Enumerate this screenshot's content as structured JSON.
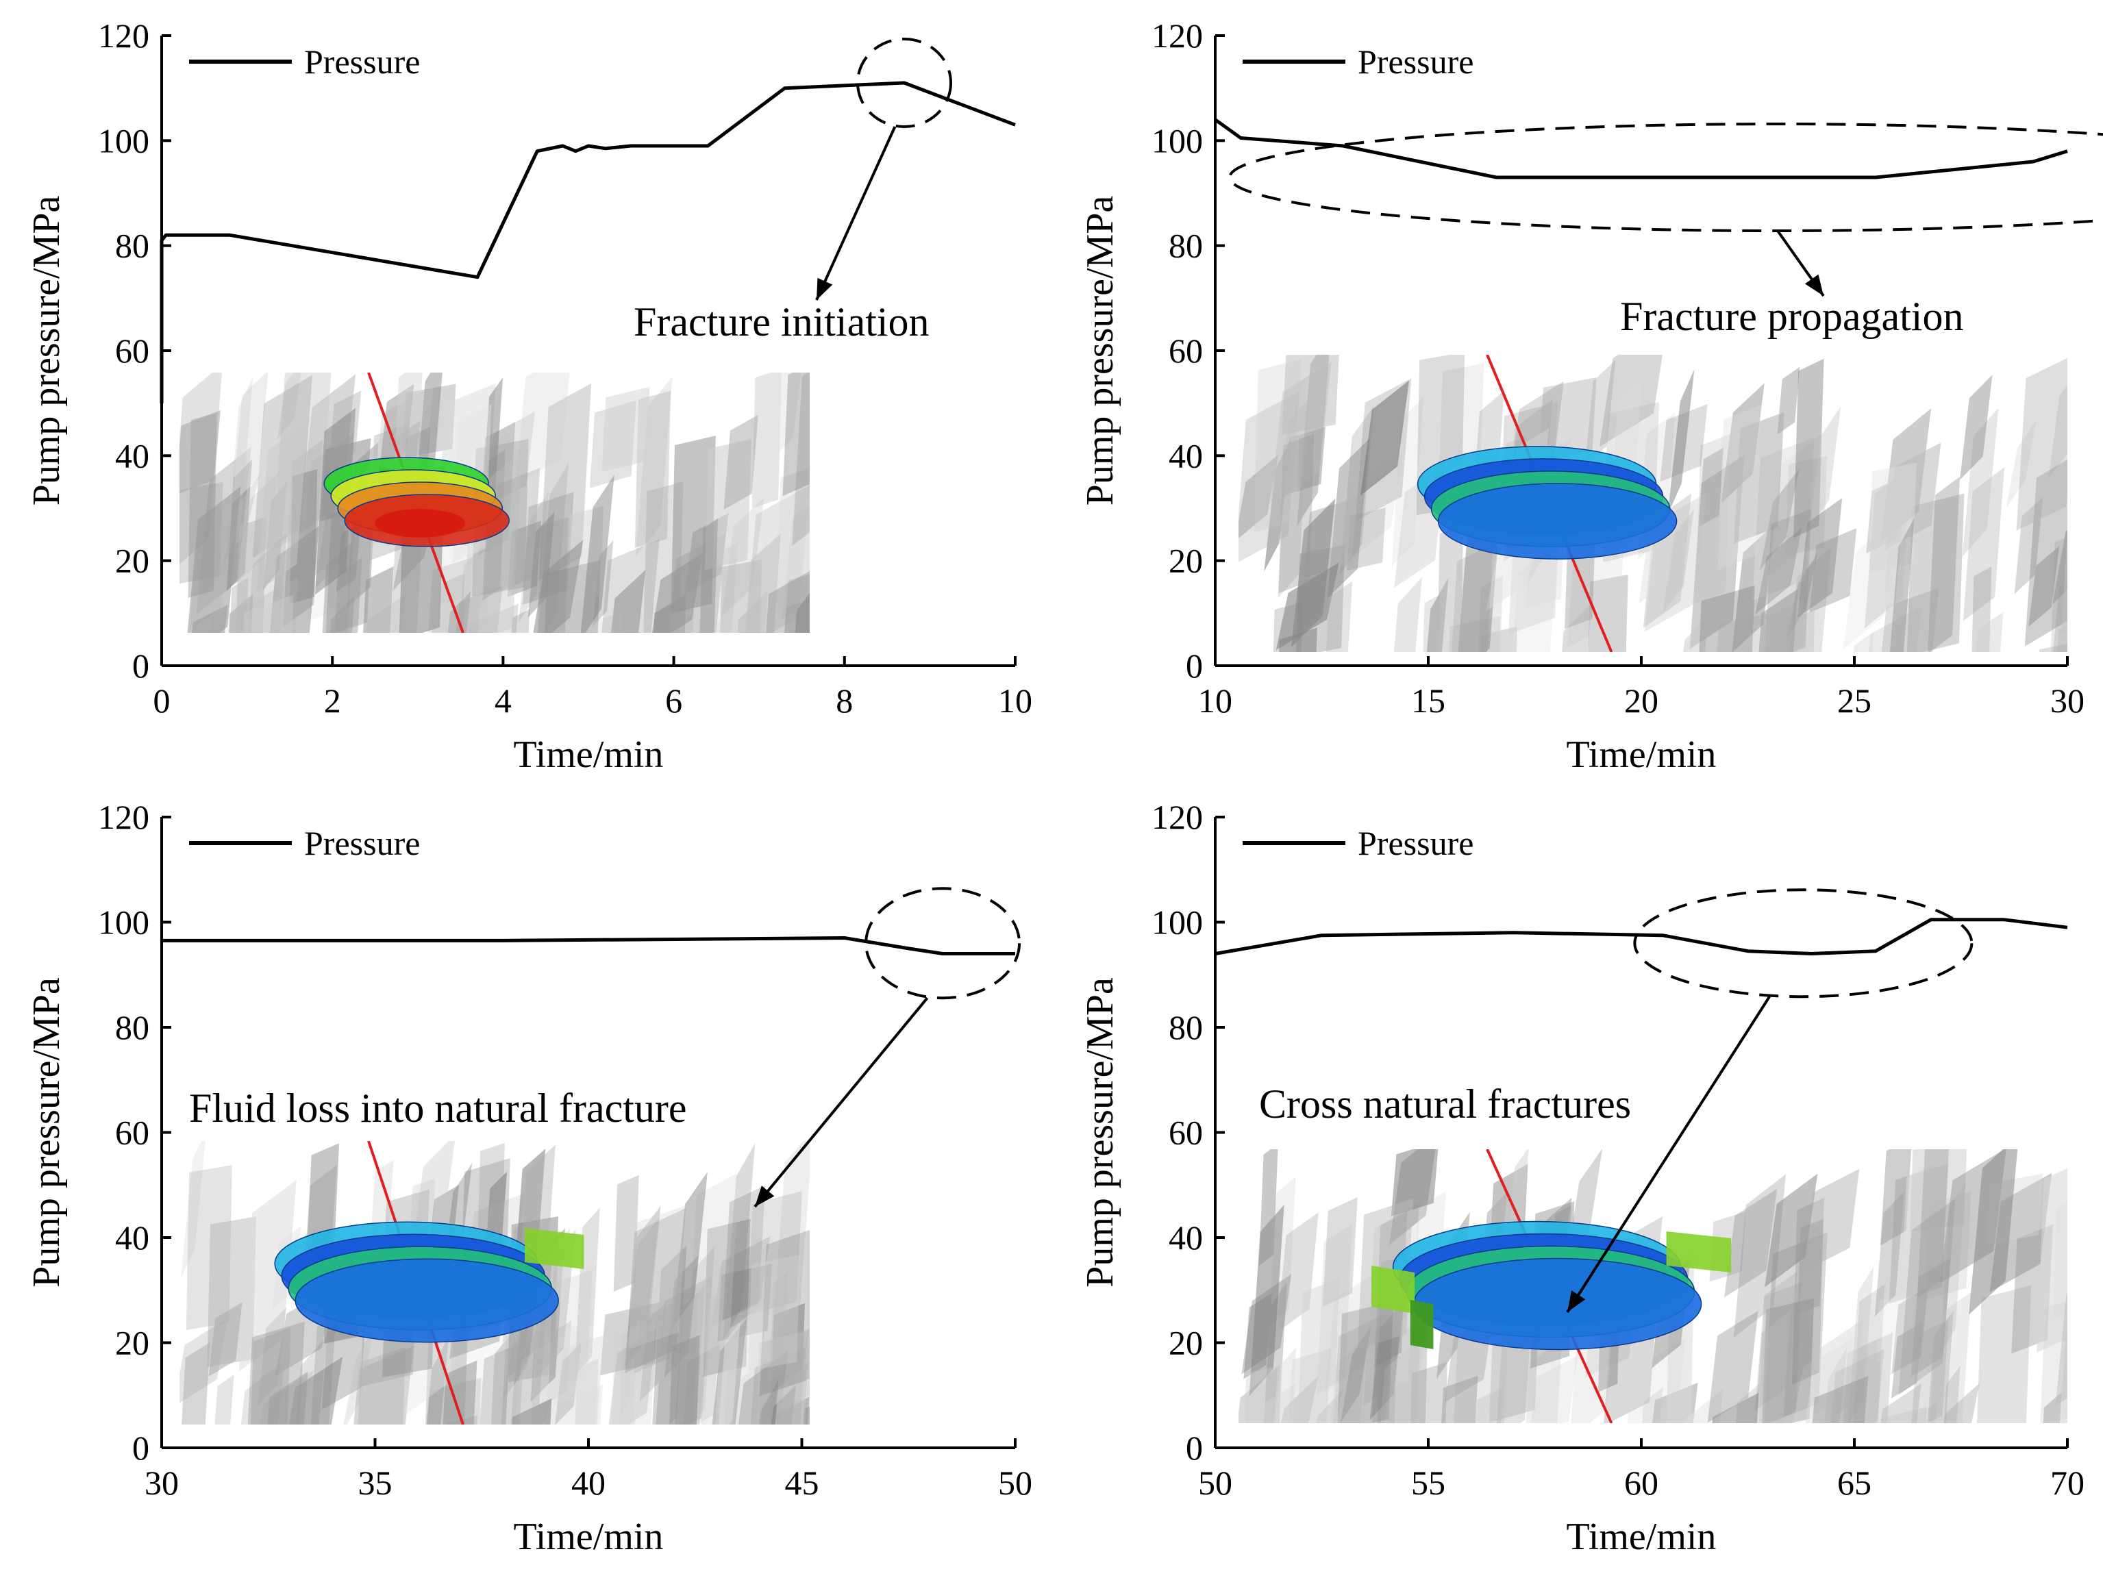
{
  "figure": {
    "panels": [
      {
        "id": "a",
        "legend": "Pressure",
        "annotation": "Fracture initiation",
        "inset_name": "fracture-initiation-inset"
      },
      {
        "id": "b",
        "legend": "Pressure",
        "annotation": "Fracture propagation",
        "inset_name": "fracture-propagation-inset"
      },
      {
        "id": "c",
        "legend": "Pressure",
        "annotation": "Fluid loss into natural fracture",
        "inset_name": "fluid-loss-inset"
      },
      {
        "id": "d",
        "legend": "Pressure",
        "annotation": "Cross natural fractures",
        "inset_name": "cross-fractures-inset"
      }
    ]
  },
  "chart_data": [
    {
      "type": "line",
      "xlabel": "Time/min",
      "ylabel": "Pump pressure/MPa",
      "xlim": [
        0,
        10
      ],
      "ylim": [
        0,
        120
      ],
      "xticks": [
        0,
        2,
        4,
        6,
        8,
        10
      ],
      "yticks": [
        0,
        20,
        40,
        60,
        80,
        100,
        120
      ],
      "legend_position": "top-left",
      "series": [
        {
          "name": "Pressure",
          "x": [
            0,
            0,
            0.05,
            0.8,
            3.7,
            4.4,
            4.7,
            4.85,
            5.0,
            5.2,
            5.5,
            6.0,
            6.4,
            7.3,
            8.7,
            10.0
          ],
          "y": [
            50,
            81,
            82,
            82,
            74,
            98,
            99,
            98,
            99,
            98.5,
            99,
            99,
            99,
            110,
            111,
            103
          ]
        }
      ],
      "highlight_x": 8.7,
      "highlight_y": 111
    },
    {
      "type": "line",
      "xlabel": "Time/min",
      "ylabel": "Pump pressure/MPa",
      "xlim": [
        10,
        30
      ],
      "ylim": [
        0,
        120
      ],
      "xticks": [
        10,
        15,
        20,
        25,
        30
      ],
      "yticks": [
        0,
        20,
        40,
        60,
        80,
        100,
        120
      ],
      "legend_position": "top-left",
      "series": [
        {
          "name": "Pressure",
          "x": [
            10,
            10.6,
            13,
            16.6,
            20,
            25.5,
            29.2,
            30
          ],
          "y": [
            104,
            100.5,
            99,
            93,
            93,
            93,
            96,
            98
          ]
        }
      ],
      "highlight_x": 23.2,
      "highlight_y": 93
    },
    {
      "type": "line",
      "xlabel": "Time/min",
      "ylabel": "Pump pressure/MPa",
      "xlim": [
        30,
        50
      ],
      "ylim": [
        0,
        120
      ],
      "xticks": [
        30,
        35,
        40,
        45,
        50
      ],
      "yticks": [
        0,
        20,
        40,
        60,
        80,
        100,
        120
      ],
      "legend_position": "top-left",
      "series": [
        {
          "name": "Pressure",
          "x": [
            30,
            38,
            46,
            47.5,
            48.3,
            50
          ],
          "y": [
            96.5,
            96.5,
            97,
            95,
            94,
            94
          ]
        }
      ],
      "highlight_x": 48.3,
      "highlight_y": 96
    },
    {
      "type": "line",
      "xlabel": "Time/min",
      "ylabel": "Pump pressure/MPa",
      "xlim": [
        50,
        70
      ],
      "ylim": [
        0,
        120
      ],
      "xticks": [
        50,
        55,
        60,
        65,
        70
      ],
      "yticks": [
        0,
        20,
        40,
        60,
        80,
        100,
        120
      ],
      "legend_position": "top-left",
      "series": [
        {
          "name": "Pressure",
          "x": [
            50,
            52.5,
            57,
            60.5,
            62.5,
            64,
            65.5,
            66.8,
            68.5,
            70
          ],
          "y": [
            94,
            97.5,
            98,
            97.5,
            94.5,
            94,
            94.5,
            100.5,
            100.5,
            99
          ]
        }
      ],
      "highlight_x": 63.8,
      "highlight_y": 96
    }
  ]
}
